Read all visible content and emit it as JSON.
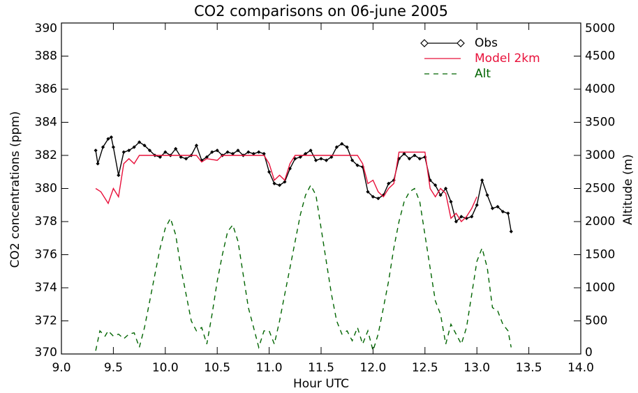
{
  "chart_data": {
    "type": "line",
    "title": "CO2 comparisons on 06-june 2005",
    "xlabel": "Hour UTC",
    "ylabel": "CO2 concentrations (ppm)",
    "y2label": "Altitude (m)",
    "xlim": [
      9,
      14
    ],
    "xticks": [
      {
        "value": 9,
        "label": "9.0"
      },
      9.5,
      {
        "value": 10,
        "label": "10.0"
      },
      10.5,
      {
        "value": 11,
        "label": "11.0"
      },
      11.5,
      {
        "value": 12,
        "label": "12.0"
      },
      12.5,
      {
        "value": 13,
        "label": "13.0"
      },
      13.5,
      {
        "value": 14,
        "label": "14.0"
      }
    ],
    "ylim": [
      370,
      390
    ],
    "yticks": [
      370,
      372,
      374,
      376,
      378,
      380,
      382,
      384,
      386,
      388,
      390
    ],
    "y2lim": [
      0,
      5000
    ],
    "y2ticks": [
      0,
      500,
      1000,
      1500,
      2000,
      2500,
      3000,
      3500,
      4000,
      4500,
      5000
    ],
    "legend": "top-right",
    "series": [
      {
        "name": "Obs",
        "color": "#000000",
        "marker": "diamond",
        "line_style": "solid",
        "x": [
          9.33,
          9.35,
          9.4,
          9.45,
          9.48,
          9.5,
          9.55,
          9.6,
          9.65,
          9.7,
          9.75,
          9.8,
          9.85,
          9.9,
          9.95,
          10.0,
          10.05,
          10.1,
          10.15,
          10.2,
          10.25,
          10.3,
          10.35,
          10.4,
          10.45,
          10.5,
          10.55,
          10.6,
          10.65,
          10.7,
          10.75,
          10.8,
          10.85,
          10.9,
          10.95,
          11.0,
          11.05,
          11.1,
          11.15,
          11.2,
          11.25,
          11.3,
          11.35,
          11.4,
          11.45,
          11.5,
          11.55,
          11.6,
          11.65,
          11.7,
          11.75,
          11.8,
          11.85,
          11.9,
          11.95,
          12.0,
          12.05,
          12.1,
          12.15,
          12.2,
          12.25,
          12.3,
          12.35,
          12.4,
          12.45,
          12.5,
          12.55,
          12.6,
          12.65,
          12.7,
          12.75,
          12.8,
          12.85,
          12.9,
          12.95,
          13.0,
          13.05,
          13.1,
          13.15,
          13.2,
          13.25,
          13.3,
          13.33
        ],
        "values": [
          382.3,
          381.5,
          382.5,
          383.0,
          383.1,
          382.5,
          380.8,
          382.2,
          382.3,
          382.5,
          382.8,
          382.6,
          382.3,
          382.0,
          381.9,
          382.2,
          382.0,
          382.4,
          381.9,
          381.8,
          382.0,
          382.6,
          381.7,
          381.9,
          382.2,
          382.3,
          382.0,
          382.2,
          382.1,
          382.3,
          382.0,
          382.2,
          382.1,
          382.2,
          382.1,
          381.0,
          380.3,
          380.2,
          380.4,
          381.2,
          381.8,
          381.9,
          382.1,
          382.3,
          381.7,
          381.8,
          381.7,
          381.9,
          382.5,
          382.7,
          382.5,
          381.7,
          381.4,
          381.3,
          379.8,
          379.5,
          379.4,
          379.6,
          380.3,
          380.5,
          381.8,
          382.1,
          381.8,
          382.0,
          381.8,
          381.9,
          380.5,
          380.2,
          379.6,
          380.0,
          379.2,
          378.0,
          378.3,
          378.2,
          378.3,
          379.0,
          380.5,
          379.6,
          378.8,
          378.9,
          378.6,
          378.5,
          377.4
        ]
      },
      {
        "name": "Model 2km",
        "color": "#e8103a",
        "line_style": "solid",
        "x": [
          9.33,
          9.38,
          9.45,
          9.5,
          9.55,
          9.6,
          9.65,
          9.7,
          9.75,
          10.0,
          10.3,
          10.35,
          10.4,
          10.5,
          10.55,
          10.95,
          11.0,
          11.05,
          11.1,
          11.15,
          11.2,
          11.25,
          11.85,
          11.9,
          11.95,
          12.0,
          12.05,
          12.1,
          12.15,
          12.2,
          12.25,
          12.5,
          12.55,
          12.6,
          12.65,
          12.7,
          12.75,
          12.8,
          12.85,
          12.9,
          12.95,
          13.0
        ],
        "values": [
          380.0,
          379.8,
          379.1,
          380.0,
          379.5,
          381.5,
          381.8,
          381.5,
          382.0,
          382.0,
          382.0,
          381.6,
          381.8,
          381.7,
          382.0,
          382.0,
          381.5,
          380.5,
          380.8,
          380.5,
          381.5,
          382.0,
          382.0,
          381.5,
          380.3,
          380.5,
          379.8,
          379.5,
          380.0,
          380.3,
          382.2,
          382.2,
          380.0,
          379.5,
          380.0,
          379.7,
          378.2,
          378.5,
          378.0,
          378.3,
          378.8,
          379.5
        ]
      },
      {
        "name": "Alt",
        "color": "#006400",
        "line_style": "dashed",
        "axis": "y2",
        "x": [
          9.33,
          9.37,
          9.42,
          9.45,
          9.5,
          9.55,
          9.6,
          9.65,
          9.7,
          9.75,
          9.8,
          9.85,
          9.9,
          9.95,
          10.0,
          10.05,
          10.1,
          10.15,
          10.2,
          10.25,
          10.3,
          10.35,
          10.4,
          10.45,
          10.5,
          10.55,
          10.6,
          10.65,
          10.7,
          10.75,
          10.8,
          10.85,
          10.9,
          10.95,
          11.0,
          11.05,
          11.1,
          11.15,
          11.2,
          11.25,
          11.3,
          11.35,
          11.4,
          11.45,
          11.5,
          11.55,
          11.6,
          11.65,
          11.7,
          11.75,
          11.8,
          11.85,
          11.9,
          11.95,
          12.0,
          12.05,
          12.1,
          12.15,
          12.2,
          12.25,
          12.3,
          12.35,
          12.4,
          12.45,
          12.5,
          12.55,
          12.6,
          12.65,
          12.7,
          12.75,
          12.8,
          12.85,
          12.9,
          12.95,
          13.0,
          13.05,
          13.1,
          13.15,
          13.2,
          13.25,
          13.3,
          13.33
        ],
        "values": [
          50,
          350,
          270,
          350,
          270,
          300,
          230,
          300,
          320,
          100,
          400,
          800,
          1200,
          1600,
          1900,
          2050,
          1800,
          1300,
          900,
          500,
          350,
          400,
          150,
          600,
          1100,
          1500,
          1850,
          1950,
          1700,
          1200,
          700,
          400,
          100,
          350,
          350,
          150,
          500,
          900,
          1300,
          1700,
          2100,
          2400,
          2550,
          2400,
          1900,
          1400,
          900,
          500,
          300,
          350,
          200,
          400,
          150,
          350,
          50,
          300,
          700,
          1100,
          1600,
          2000,
          2300,
          2450,
          2500,
          2300,
          1800,
          1300,
          800,
          600,
          150,
          450,
          300,
          150,
          400,
          900,
          1400,
          1600,
          1300,
          700,
          650,
          450,
          350,
          100
        ]
      }
    ]
  }
}
